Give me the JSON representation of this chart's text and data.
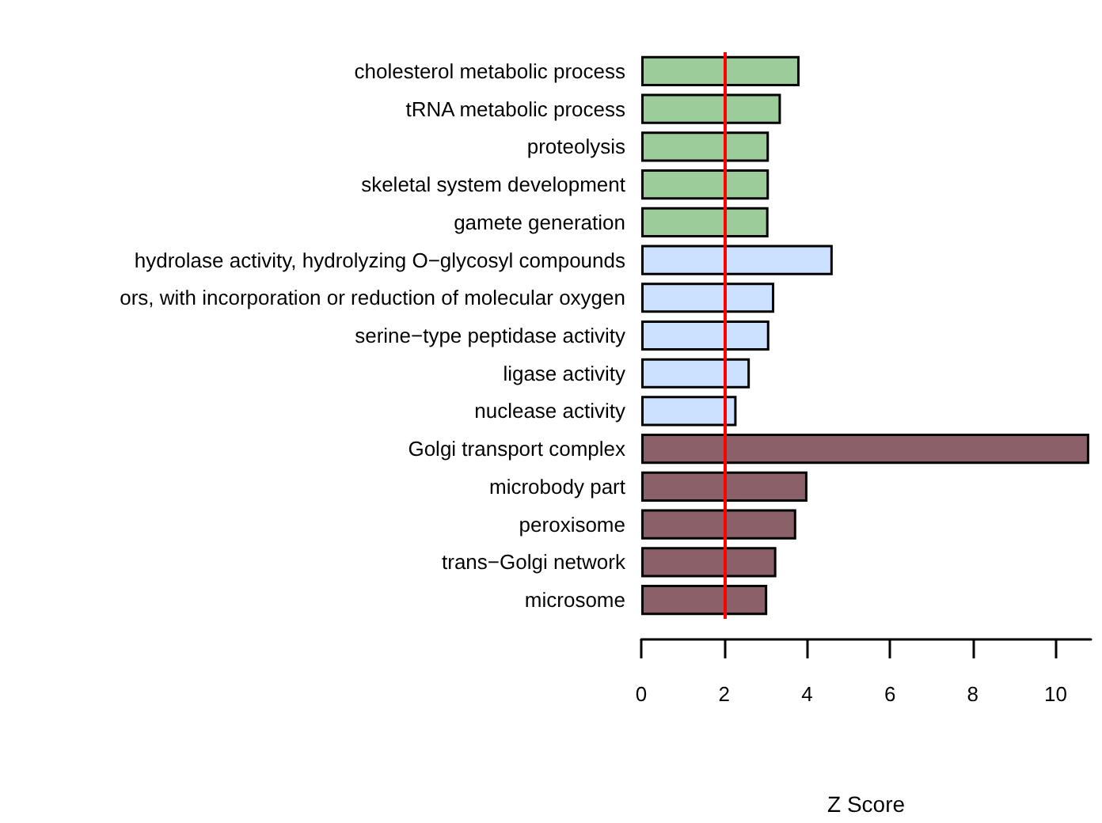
{
  "chart_data": {
    "type": "bar",
    "orientation": "horizontal",
    "xlabel": "Z Score",
    "categories": [
      "cholesterol metabolic process",
      "tRNA metabolic process",
      "proteolysis",
      "skeletal system development",
      "gamete generation",
      "hydrolase activity, hydrolyzing O−glycosyl compounds",
      "ors, with incorporation or reduction of molecular oxygen",
      "serine−type peptidase activity",
      "ligase activity",
      "nuclease activity",
      "Golgi transport complex",
      "microbody part",
      "peroxisome",
      "trans−Golgi network",
      "microsome"
    ],
    "values": [
      3.82,
      3.37,
      3.08,
      3.08,
      3.07,
      4.62,
      3.21,
      3.09,
      2.62,
      2.3,
      10.81,
      4.01,
      3.74,
      3.26,
      3.04
    ],
    "colors": [
      "#9ccc9a",
      "#9ccc9a",
      "#9ccc9a",
      "#9ccc9a",
      "#9ccc9a",
      "#cce0ff",
      "#cce0ff",
      "#cce0ff",
      "#cce0ff",
      "#cce0ff",
      "#8b6068",
      "#8b6068",
      "#8b6068",
      "#8b6068",
      "#8b6068"
    ],
    "xlim": [
      0,
      10.85
    ],
    "xticks": [
      0,
      2,
      4,
      6,
      8,
      10
    ],
    "ref_lines": [
      {
        "axis": "x",
        "value": 2,
        "color": "#ff0000",
        "line_style": "solid"
      }
    ]
  }
}
